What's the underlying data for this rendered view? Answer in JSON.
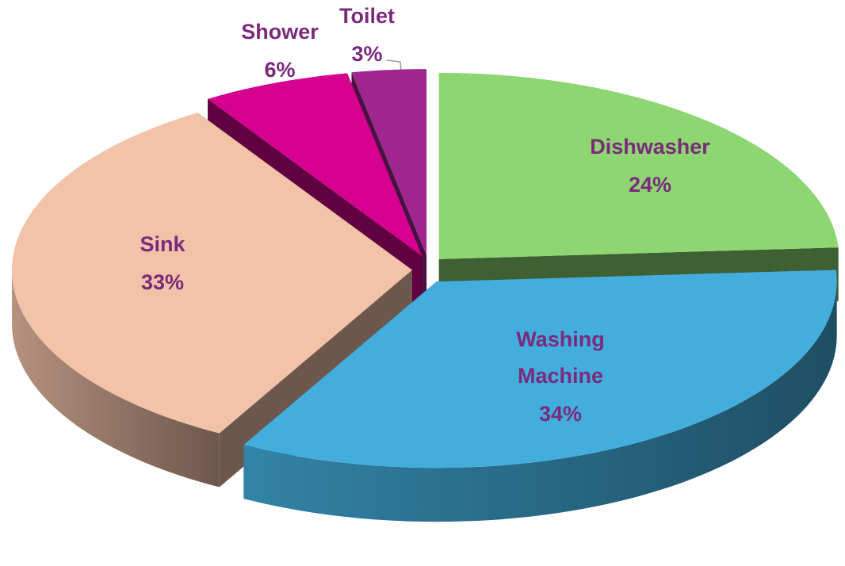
{
  "chart_data": {
    "type": "pie3d",
    "categories": [
      "Dishwasher",
      "Washing Machine",
      "Sink",
      "Shower",
      "Toilet"
    ],
    "values": [
      24,
      34,
      33,
      6,
      3
    ],
    "value_labels": [
      "24%",
      "34%",
      "33%",
      "6%",
      "3%"
    ],
    "colors": [
      "#8dd672",
      "#43aedd",
      "#f2c2a9",
      "#d5008f",
      "#a0268f"
    ]
  }
}
